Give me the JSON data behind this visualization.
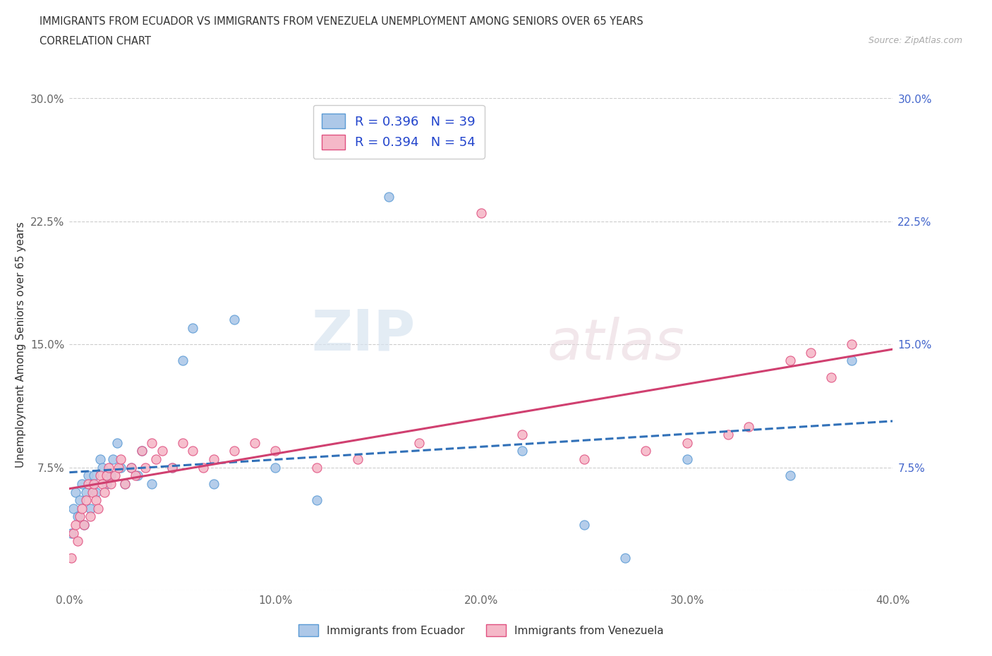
{
  "title_line1": "IMMIGRANTS FROM ECUADOR VS IMMIGRANTS FROM VENEZUELA UNEMPLOYMENT AMONG SENIORS OVER 65 YEARS",
  "title_line2": "CORRELATION CHART",
  "source_text": "Source: ZipAtlas.com",
  "ylabel": "Unemployment Among Seniors over 65 years",
  "legend_label1": "Immigrants from Ecuador",
  "legend_label2": "Immigrants from Venezuela",
  "R1": "0.396",
  "N1": "39",
  "R2": "0.394",
  "N2": "54",
  "color_ecuador_fill": "#adc8e8",
  "color_venezuela_fill": "#f5b8c8",
  "color_ecuador_edge": "#5b9bd5",
  "color_venezuela_edge": "#e05080",
  "color_ecuador_line": "#3070b8",
  "color_venezuela_line": "#d04070",
  "color_text_blue": "#2244cc",
  "xlim": [
    0.0,
    0.4
  ],
  "ylim": [
    0.0,
    0.3
  ],
  "xticks": [
    0.0,
    0.1,
    0.2,
    0.3,
    0.4
  ],
  "yticks": [
    0.0,
    0.075,
    0.15,
    0.225,
    0.3
  ],
  "xticklabels": [
    "0.0%",
    "10.0%",
    "20.0%",
    "30.0%",
    "40.0%"
  ],
  "yticklabels_left": [
    "",
    "7.5%",
    "15.0%",
    "22.5%",
    "30.0%"
  ],
  "yticklabels_right": [
    "",
    "7.5%",
    "15.0%",
    "22.5%",
    "30.0%"
  ],
  "watermark_zip": "ZIP",
  "watermark_atlas": "atlas",
  "ecuador_x": [
    0.001,
    0.002,
    0.003,
    0.004,
    0.005,
    0.006,
    0.007,
    0.008,
    0.009,
    0.01,
    0.011,
    0.012,
    0.013,
    0.015,
    0.016,
    0.018,
    0.02,
    0.021,
    0.023,
    0.025,
    0.027,
    0.03,
    0.033,
    0.035,
    0.04,
    0.05,
    0.055,
    0.06,
    0.07,
    0.08,
    0.1,
    0.12,
    0.155,
    0.22,
    0.25,
    0.27,
    0.3,
    0.35,
    0.38
  ],
  "ecuador_y": [
    0.035,
    0.05,
    0.06,
    0.045,
    0.055,
    0.065,
    0.04,
    0.06,
    0.07,
    0.05,
    0.065,
    0.07,
    0.06,
    0.08,
    0.075,
    0.065,
    0.07,
    0.08,
    0.09,
    0.075,
    0.065,
    0.075,
    0.07,
    0.085,
    0.065,
    0.075,
    0.14,
    0.16,
    0.065,
    0.165,
    0.075,
    0.055,
    0.24,
    0.085,
    0.04,
    0.02,
    0.08,
    0.07,
    0.14
  ],
  "venezuela_x": [
    0.001,
    0.002,
    0.003,
    0.004,
    0.005,
    0.006,
    0.007,
    0.008,
    0.009,
    0.01,
    0.011,
    0.012,
    0.013,
    0.014,
    0.015,
    0.016,
    0.017,
    0.018,
    0.019,
    0.02,
    0.022,
    0.024,
    0.025,
    0.027,
    0.03,
    0.032,
    0.035,
    0.037,
    0.04,
    0.042,
    0.045,
    0.05,
    0.055,
    0.06,
    0.065,
    0.07,
    0.08,
    0.09,
    0.1,
    0.12,
    0.14,
    0.15,
    0.17,
    0.2,
    0.22,
    0.25,
    0.28,
    0.3,
    0.32,
    0.33,
    0.35,
    0.36,
    0.37,
    0.38
  ],
  "venezuela_y": [
    0.02,
    0.035,
    0.04,
    0.03,
    0.045,
    0.05,
    0.04,
    0.055,
    0.065,
    0.045,
    0.06,
    0.065,
    0.055,
    0.05,
    0.07,
    0.065,
    0.06,
    0.07,
    0.075,
    0.065,
    0.07,
    0.075,
    0.08,
    0.065,
    0.075,
    0.07,
    0.085,
    0.075,
    0.09,
    0.08,
    0.085,
    0.075,
    0.09,
    0.085,
    0.075,
    0.08,
    0.085,
    0.09,
    0.085,
    0.075,
    0.08,
    0.27,
    0.09,
    0.23,
    0.095,
    0.08,
    0.085,
    0.09,
    0.095,
    0.1,
    0.14,
    0.145,
    0.13,
    0.15
  ]
}
